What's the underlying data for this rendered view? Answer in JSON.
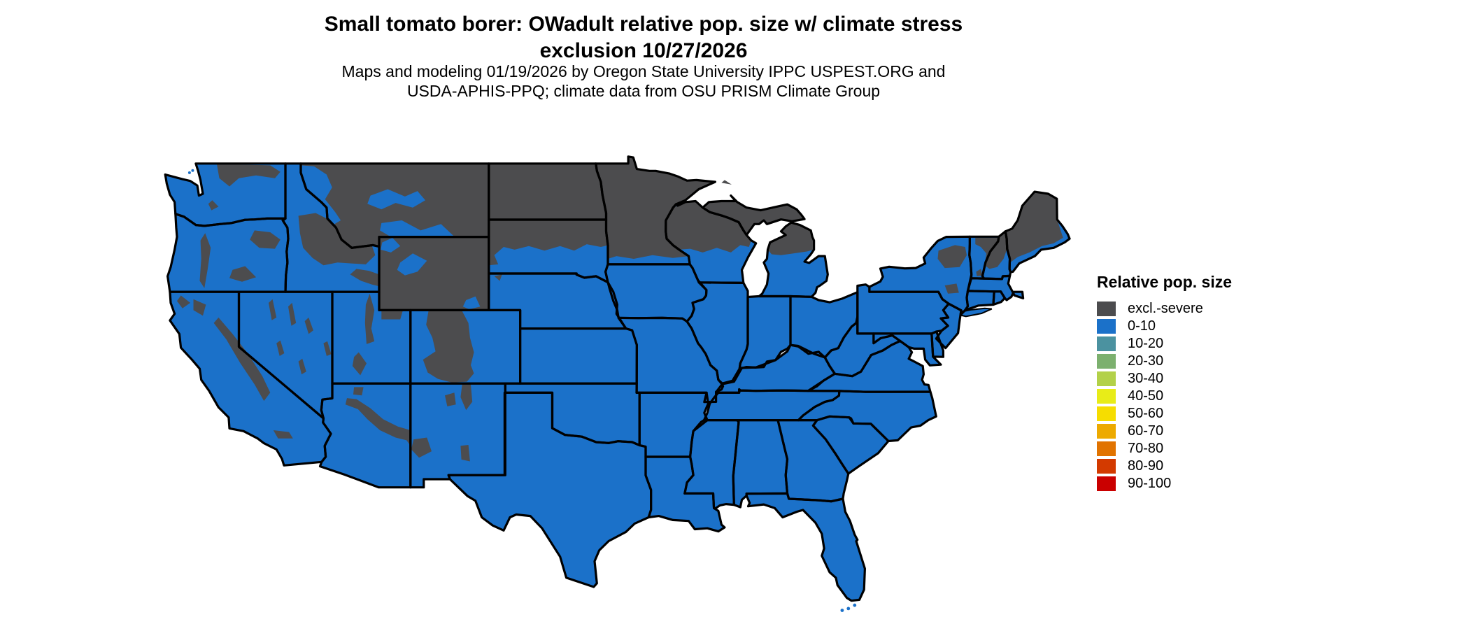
{
  "header": {
    "title_line1": "Small tomato borer: OWadult relative pop. size w/ climate stress",
    "title_line2": "exclusion 10/27/2026",
    "subtitle_line1": "Maps and modeling 01/19/2026 by Oregon State University IPPC USPEST.ORG and",
    "subtitle_line2": "USDA-APHIS-PPQ; climate data from OSU PRISM Climate Group"
  },
  "legend": {
    "title": "Relative pop. size",
    "items": [
      {
        "label": "excl.-severe",
        "color": "#4c4c4e"
      },
      {
        "label": "0-10",
        "color": "#1b71c9"
      },
      {
        "label": "10-20",
        "color": "#4b92a0"
      },
      {
        "label": "20-30",
        "color": "#7cb06e"
      },
      {
        "label": "30-40",
        "color": "#b3d149"
      },
      {
        "label": "40-50",
        "color": "#e8ec18"
      },
      {
        "label": "50-60",
        "color": "#f6dd00"
      },
      {
        "label": "60-70",
        "color": "#edaa00"
      },
      {
        "label": "70-80",
        "color": "#e17300"
      },
      {
        "label": "80-90",
        "color": "#d33a00"
      },
      {
        "label": "90-100",
        "color": "#ca0000"
      }
    ]
  },
  "map": {
    "land_base_category": "0-10",
    "land_base_color": "#1b71c9",
    "exclusion_category": "excl.-severe",
    "exclusion_color": "#4c4c4e",
    "border_color": "#000000",
    "water_color": "#ffffff",
    "excluded_regions": [
      "North Dakota",
      "Minnesota",
      "Montana",
      "Wyoming",
      "northern South Dakota",
      "Black Hills",
      "northern Wisconsin",
      "upper peninsula Michigan",
      "northern lower Michigan",
      "interior Maine",
      "northern New England",
      "Adirondacks",
      "Catskills",
      "Colorado Rockies",
      "Utah ranges",
      "central Idaho",
      "southeast Idaho",
      "Sierra Nevada",
      "Cascades",
      "Blue Mountains",
      "northern Washington",
      "Nevada ranges",
      "Mogollon Rim Arizona",
      "Kaibab Plateau",
      "northern New Mexico ranges",
      "Gila highlands",
      "Sacramento Mountains",
      "Isle Royale"
    ]
  }
}
